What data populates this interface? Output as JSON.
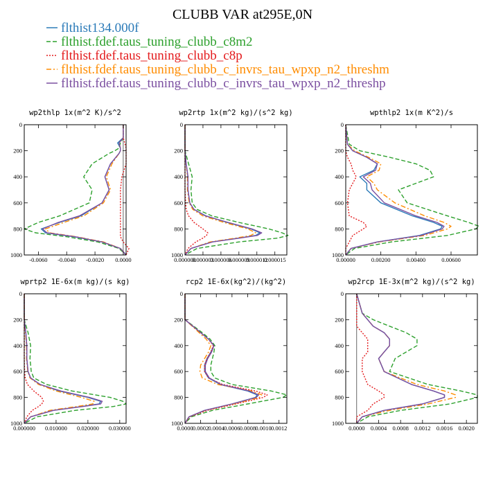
{
  "figure_title": "CLUBB VAR at295E,0N",
  "legend": [
    {
      "label": "flthist134.000f",
      "color": "#2a7ab8",
      "dash": "solid"
    },
    {
      "label": "flthist.fdef.taus_tuning_clubb_c8m2",
      "color": "#2ca02c",
      "dash": "dash"
    },
    {
      "label": "flthist.fdef.taus_tuning_clubb_c8p",
      "color": "#e31a1c",
      "dash": "dot"
    },
    {
      "label": "flthist.fdef.taus_tuning_clubb_c_invrs_tau_wpxp_n2_threshm",
      "color": "#ff8c00",
      "dash": "dashdot"
    },
    {
      "label": "flthist.fdef.taus_tuning_clubb_c_invrs_tau_wpxp_n2_threshp",
      "color": "#7b4fa0",
      "dash": "solid"
    }
  ],
  "chart_data": [
    {
      "type": "line",
      "title": "wp2thlp  1x(m^2 K)/s^2",
      "xlim": [
        -0.007,
        0.0002
      ],
      "ylim": [
        1000,
        0
      ],
      "yticks": [
        0,
        200,
        400,
        600,
        800,
        1000
      ],
      "xticks": [
        -0.006,
        -0.004,
        -0.002,
        0.0
      ],
      "xtick_labels": [
        "-0.0060",
        "-0.0040",
        "-0.0020",
        "0.0000"
      ],
      "y": [
        0,
        100,
        140,
        180,
        200,
        220,
        300,
        400,
        500,
        600,
        700,
        750,
        800,
        830,
        860,
        900,
        950,
        1000
      ],
      "series": [
        {
          "values": [
            0.0,
            0.0,
            -0.0004,
            -0.0002,
            -0.0002,
            -0.0003,
            -0.0009,
            -0.0013,
            -0.001,
            -0.0015,
            -0.003,
            -0.0045,
            -0.0058,
            -0.0055,
            -0.0035,
            -0.0015,
            -0.0002,
            0.0002
          ]
        },
        {
          "values": [
            0.0,
            0.0,
            -0.0002,
            -0.0003,
            -0.0006,
            -0.001,
            -0.0022,
            -0.0028,
            -0.0022,
            -0.0024,
            -0.0045,
            -0.006,
            -0.007,
            -0.0062,
            -0.004,
            -0.0018,
            -0.0003,
            0.0002
          ]
        },
        {
          "values": [
            0.0,
            0.0,
            0.0001,
            0.0002,
            0.0002,
            0.0002,
            0.0002,
            -0.0001,
            -0.0002,
            -0.0002,
            -0.0002,
            -0.0002,
            -0.0002,
            -0.0002,
            -0.0002,
            0.0,
            0.0004,
            0.0002
          ]
        },
        {
          "values": [
            0.0,
            0.0,
            -0.0003,
            -0.0002,
            -0.0002,
            -0.0003,
            -0.0008,
            -0.0012,
            -0.0009,
            -0.0014,
            -0.0028,
            -0.0042,
            -0.0055,
            -0.0052,
            -0.0033,
            -0.0014,
            -0.0002,
            0.0002
          ]
        },
        {
          "values": [
            0.0,
            0.0,
            -0.0003,
            -0.0002,
            -0.0002,
            -0.0003,
            -0.0009,
            -0.0013,
            -0.001,
            -0.0015,
            -0.0031,
            -0.0046,
            -0.0057,
            -0.0054,
            -0.0034,
            -0.0015,
            -0.0002,
            0.0002
          ]
        }
      ]
    },
    {
      "type": "line",
      "title": "wp2rtp  1x(m^2 kg)/(s^2 kg)",
      "xlim": [
        0.0,
        1.7e-05
      ],
      "ylim": [
        1000,
        0
      ],
      "yticks": [
        0,
        200,
        400,
        600,
        800,
        1000
      ],
      "xticks": [
        0.0,
        3e-06,
        6e-06,
        9e-06,
        1.2e-05,
        1.5e-05
      ],
      "xtick_labels": [
        "0.000000",
        "0.000003",
        "0.000006",
        "0.000009",
        "0.000012",
        "0.000015"
      ],
      "y": [
        0,
        200,
        300,
        400,
        500,
        600,
        650,
        700,
        750,
        800,
        830,
        850,
        870,
        900,
        950,
        1000
      ],
      "series": [
        {
          "values": [
            0.0,
            0.0,
            2e-07,
            5e-07,
            5e-07,
            8e-07,
            1.5e-06,
            3.5e-06,
            7e-06,
            1.1e-05,
            1.25e-05,
            1.18e-05,
            9e-06,
            4.5e-06,
            1e-06,
            0.0
          ]
        },
        {
          "values": [
            0.0,
            0.0,
            6e-07,
            1.2e-06,
            1e-06,
            1.2e-06,
            2e-06,
            4.5e-06,
            9e-06,
            1.4e-05,
            1.62e-05,
            1.72e-05,
            1.55e-05,
            9e-06,
            2e-06,
            0.0
          ]
        },
        {
          "values": [
            0.0,
            0.0,
            0.0,
            0.0,
            0.0,
            1e-07,
            2e-07,
            6e-07,
            1.5e-06,
            3e-06,
            3.8e-06,
            3.6e-06,
            3e-06,
            1.8e-06,
            5e-07,
            0.0
          ]
        },
        {
          "values": [
            0.0,
            0.0,
            2e-07,
            4e-07,
            4e-07,
            7e-07,
            1.3e-06,
            3e-06,
            6.5e-06,
            1.05e-05,
            1.18e-05,
            1.1e-05,
            8.5e-06,
            4.2e-06,
            1e-06,
            0.0
          ]
        },
        {
          "values": [
            0.0,
            0.0,
            2e-07,
            5e-07,
            5e-07,
            8e-07,
            1.5e-06,
            3.4e-06,
            7.2e-06,
            1.12e-05,
            1.28e-05,
            1.21e-05,
            9.2e-06,
            4.6e-06,
            1e-06,
            0.0
          ]
        }
      ]
    },
    {
      "type": "line",
      "title": "wpthlp2  1x(m K^2)/s",
      "xlim": [
        0.0,
        0.0075
      ],
      "ylim": [
        1000,
        0
      ],
      "yticks": [
        0,
        200,
        400,
        600,
        800,
        1000
      ],
      "xticks": [
        0.0,
        0.002,
        0.004,
        0.006
      ],
      "xtick_labels": [
        "0.00000",
        "0.00200",
        "0.00400",
        "0.00600"
      ],
      "y": [
        0,
        150,
        200,
        250,
        300,
        350,
        400,
        450,
        500,
        600,
        700,
        750,
        780,
        800,
        850,
        900,
        950,
        1000
      ],
      "series": [
        {
          "values": [
            0.0,
            0.0001,
            0.0004,
            0.0012,
            0.0018,
            0.0016,
            0.0008,
            0.0012,
            0.0012,
            0.002,
            0.0038,
            0.005,
            0.0055,
            0.0054,
            0.0042,
            0.0018,
            0.0003,
            0.0
          ]
        },
        {
          "values": [
            0.0,
            0.0002,
            0.0008,
            0.0025,
            0.004,
            0.0048,
            0.005,
            0.004,
            0.003,
            0.0035,
            0.0058,
            0.007,
            0.0076,
            0.0074,
            0.0058,
            0.0026,
            0.0005,
            0.0
          ]
        },
        {
          "values": [
            0.0,
            0.0,
            0.0,
            0.0001,
            0.0003,
            0.0004,
            0.0006,
            0.0004,
            0.0002,
            0.0001,
            0.0002,
            0.001,
            0.0012,
            0.001,
            0.0004,
            0.0002,
            0.0,
            0.0
          ]
        },
        {
          "values": [
            0.0,
            0.0001,
            0.0005,
            0.0013,
            0.002,
            0.0019,
            0.0012,
            0.0016,
            0.0018,
            0.0028,
            0.0045,
            0.0056,
            0.006,
            0.0058,
            0.0045,
            0.0019,
            0.0003,
            0.0
          ]
        },
        {
          "values": [
            0.0,
            0.0001,
            0.0004,
            0.0012,
            0.0018,
            0.0017,
            0.001,
            0.0014,
            0.0015,
            0.0022,
            0.004,
            0.0052,
            0.0056,
            0.0055,
            0.0043,
            0.0018,
            0.0003,
            0.0
          ]
        }
      ]
    },
    {
      "type": "line",
      "title": "wprtp2  1E-6x(m kg)/(s kg)",
      "xlim": [
        0.0,
        0.032
      ],
      "ylim": [
        1000,
        0
      ],
      "yticks": [
        0,
        200,
        400,
        600,
        800,
        1000
      ],
      "xticks": [
        0.0,
        0.01,
        0.02,
        0.03
      ],
      "xtick_labels": [
        "0.000000",
        "0.010000",
        "0.020000",
        "0.030000"
      ],
      "y": [
        0,
        200,
        300,
        400,
        500,
        600,
        650,
        700,
        750,
        800,
        830,
        850,
        870,
        900,
        950,
        1000
      ],
      "series": [
        {
          "values": [
            0.0,
            0.0,
            0.0005,
            0.0008,
            0.0008,
            0.0012,
            0.002,
            0.005,
            0.011,
            0.02,
            0.024,
            0.0235,
            0.018,
            0.009,
            0.002,
            0.0
          ]
        },
        {
          "values": [
            0.0,
            0.0,
            0.0012,
            0.002,
            0.0018,
            0.0022,
            0.003,
            0.007,
            0.015,
            0.027,
            0.031,
            0.032,
            0.028,
            0.016,
            0.004,
            0.0
          ]
        },
        {
          "values": [
            0.0,
            0.0,
            0.0,
            0.0,
            0.0,
            0.0001,
            0.0003,
            0.001,
            0.003,
            0.0055,
            0.006,
            0.0055,
            0.0045,
            0.0025,
            0.0008,
            0.0
          ]
        },
        {
          "values": [
            0.0,
            0.0,
            0.0004,
            0.0007,
            0.0007,
            0.0011,
            0.0018,
            0.0045,
            0.01,
            0.018,
            0.022,
            0.0215,
            0.0165,
            0.008,
            0.002,
            0.0
          ]
        },
        {
          "values": [
            0.0,
            0.0,
            0.0005,
            0.0008,
            0.0008,
            0.0012,
            0.002,
            0.005,
            0.0115,
            0.0205,
            0.0245,
            0.024,
            0.0185,
            0.0092,
            0.002,
            0.0
          ]
        }
      ]
    },
    {
      "type": "line",
      "title": "rcp2  1E-6x(kg^2)/(kg^2)",
      "xlim": [
        0.0,
        0.0013
      ],
      "ylim": [
        1000,
        0
      ],
      "yticks": [
        0,
        200,
        400,
        600,
        800,
        1000
      ],
      "xticks": [
        0.0,
        0.0002,
        0.0004,
        0.0006,
        0.0008,
        0.001,
        0.0012
      ],
      "xtick_labels": [
        "0.0000",
        "0.0002",
        "0.0004",
        "0.0006",
        "0.0008",
        "0.0010",
        "0.0012"
      ],
      "y": [
        0,
        200,
        300,
        350,
        400,
        450,
        500,
        550,
        600,
        650,
        700,
        750,
        780,
        800,
        850,
        900,
        950,
        1000
      ],
      "series": [
        {
          "values": [
            0.0,
            0.0,
            0.0002,
            0.0003,
            0.00037,
            0.00033,
            0.00028,
            0.00025,
            0.00025,
            0.0003,
            0.00045,
            0.0008,
            0.00092,
            0.0009,
            0.0006,
            0.00025,
            5e-05,
            0.0
          ]
        },
        {
          "values": [
            0.0,
            0.0,
            0.00022,
            0.00032,
            0.00038,
            0.00037,
            0.00035,
            0.00033,
            0.00033,
            0.00038,
            0.0006,
            0.0011,
            0.0013,
            0.00125,
            0.0008,
            0.00035,
            8e-05,
            0.0
          ]
        },
        {
          "values": [
            0.0,
            0.0,
            0.0002,
            0.0003,
            0.00036,
            0.00033,
            0.00028,
            0.00025,
            0.00025,
            0.0003,
            0.00048,
            0.0009,
            0.00105,
            0.001,
            0.00065,
            0.00028,
            6e-05,
            0.0
          ]
        },
        {
          "values": [
            0.0,
            0.0,
            0.00018,
            0.00027,
            0.00033,
            0.0003,
            0.00025,
            0.0002,
            0.00019,
            0.00022,
            0.00042,
            0.00085,
            0.00098,
            0.00095,
            0.00062,
            0.00026,
            5e-05,
            0.0
          ]
        },
        {
          "values": [
            0.0,
            0.0,
            0.0002,
            0.0003,
            0.00037,
            0.00034,
            0.00029,
            0.00026,
            0.00026,
            0.00031,
            0.00046,
            0.00082,
            0.00094,
            0.00091,
            0.0006,
            0.00025,
            5e-05,
            0.0
          ]
        }
      ]
    },
    {
      "type": "line",
      "title": "wp2rcp  1E-3x(m^2 kg)/(s^2 kg)",
      "xlim": [
        -0.0002,
        0.0022
      ],
      "ylim": [
        1000,
        0
      ],
      "yticks": [
        0,
        200,
        400,
        600,
        800,
        1000
      ],
      "xticks": [
        0.0,
        0.0004,
        0.0008,
        0.0012,
        0.0016,
        0.002
      ],
      "xtick_labels": [
        "0.0000",
        "0.0004",
        "0.0008",
        "0.0012",
        "0.0016",
        "0.0020"
      ],
      "y": [
        0,
        150,
        200,
        250,
        300,
        350,
        400,
        450,
        500,
        600,
        700,
        750,
        780,
        800,
        850,
        900,
        950,
        1000
      ],
      "series": [
        {
          "values": [
            0.0,
            0.0001,
            0.0002,
            0.0003,
            0.0005,
            0.0006,
            0.0006,
            0.0005,
            0.0004,
            0.0005,
            0.001,
            0.0014,
            0.0016,
            0.0016,
            0.0012,
            0.0005,
            0.0001,
            0.0
          ]
        },
        {
          "values": [
            0.0,
            0.0001,
            0.0003,
            0.0006,
            0.0009,
            0.0011,
            0.0011,
            0.0009,
            0.0007,
            0.0006,
            0.0013,
            0.0019,
            0.0022,
            0.0022,
            0.0017,
            0.0008,
            0.0002,
            0.0
          ]
        },
        {
          "values": [
            0.0,
            0.0,
            0.0,
            0.0,
            0.0001,
            0.0002,
            0.0002,
            0.0002,
            0.0001,
            0.0001,
            0.0002,
            0.0004,
            0.0005,
            0.0005,
            0.0003,
            0.0002,
            0.0,
            0.0
          ]
        },
        {
          "values": [
            0.0,
            0.0001,
            0.0002,
            0.0003,
            0.0005,
            0.0006,
            0.0006,
            0.0005,
            0.0004,
            0.0005,
            0.0011,
            0.0016,
            0.0018,
            0.0018,
            0.0013,
            0.0006,
            0.0001,
            0.0
          ]
        },
        {
          "values": [
            0.0,
            0.0001,
            0.0002,
            0.0003,
            0.0005,
            0.0006,
            0.0006,
            0.0005,
            0.0004,
            0.0005,
            0.001,
            0.0014,
            0.0016,
            0.0016,
            0.0012,
            0.0005,
            0.0001,
            0.0
          ]
        }
      ]
    }
  ]
}
